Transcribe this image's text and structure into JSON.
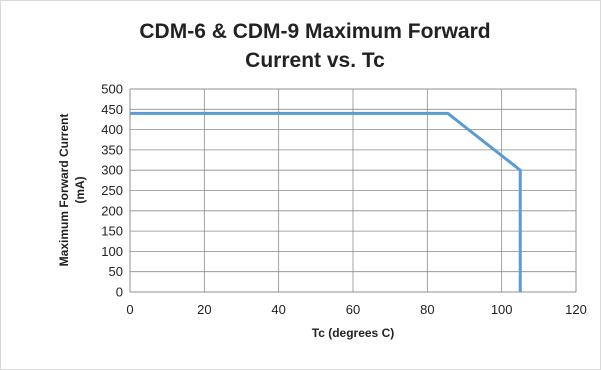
{
  "chart_data": {
    "type": "line",
    "title_lines": [
      "CDM-6 & CDM-9 Maximum Forward",
      "Current vs. Tc"
    ],
    "xlabel": "Tc (degrees C)",
    "ylabel_lines": [
      "Maximum Forward Current",
      "(mA)"
    ],
    "xlim": [
      0,
      120
    ],
    "ylim": [
      0,
      500
    ],
    "x_ticks": [
      0,
      20,
      40,
      60,
      80,
      100,
      120
    ],
    "y_ticks": [
      0,
      50,
      100,
      150,
      200,
      250,
      300,
      350,
      400,
      450,
      500
    ],
    "grid": true,
    "series": [
      {
        "color": "#5b9bd5",
        "points": [
          [
            0,
            440
          ],
          [
            85.5,
            440
          ],
          [
            105,
            300
          ],
          [
            105,
            0
          ]
        ]
      }
    ]
  }
}
